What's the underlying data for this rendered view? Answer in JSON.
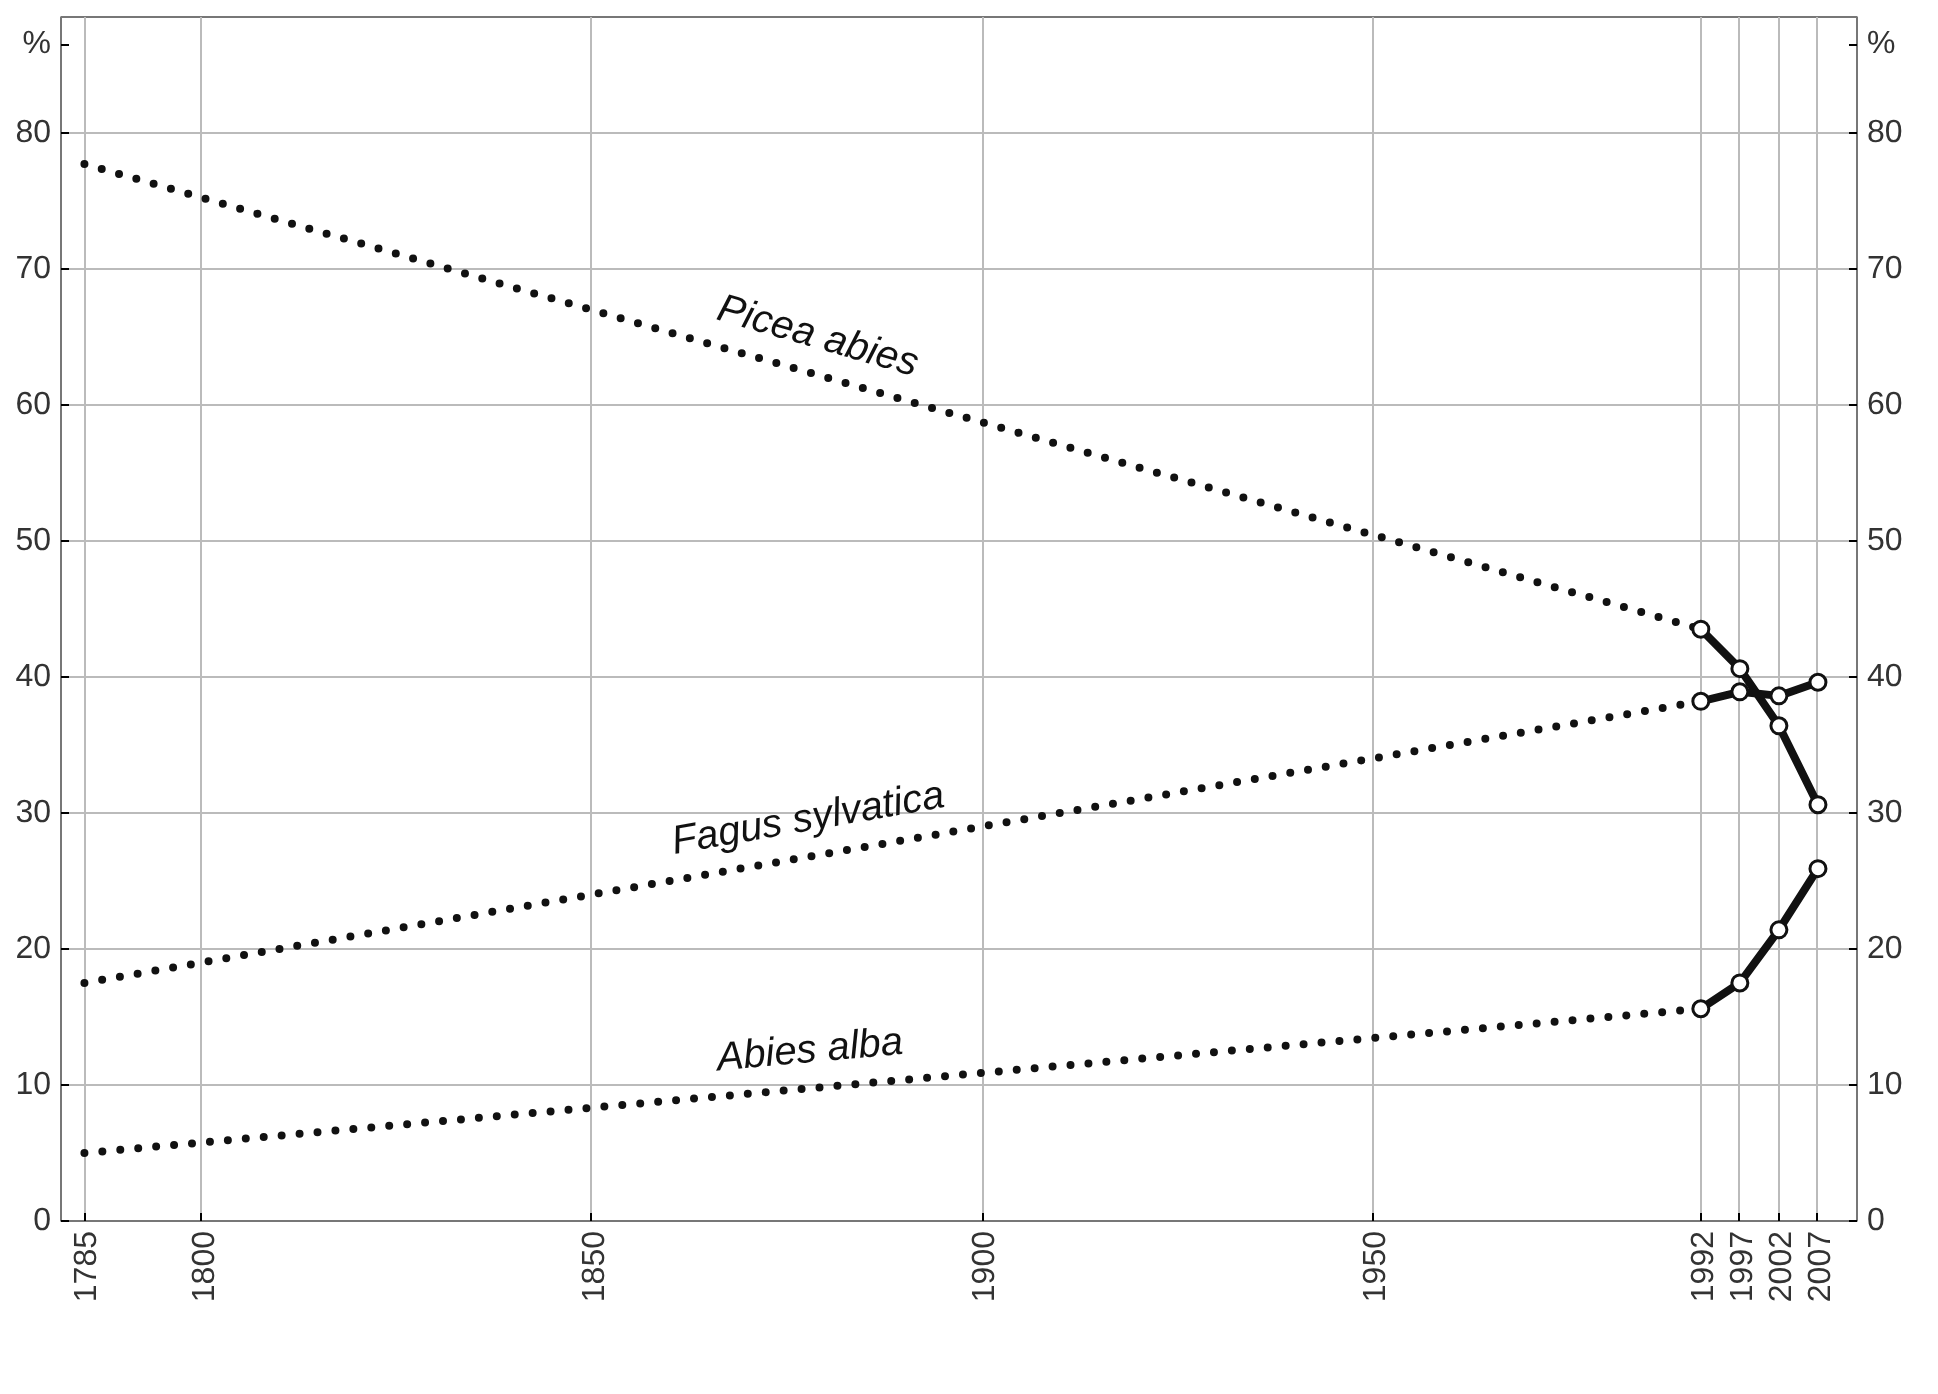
{
  "chart_data": {
    "type": "line",
    "xlim": [
      1782,
      2012
    ],
    "ylim": [
      0,
      88.5
    ],
    "y2lim": [
      0,
      88.5
    ],
    "xticks": [
      1785,
      1800,
      1850,
      1900,
      1950,
      1992,
      1997,
      2002,
      2007
    ],
    "yticks": [
      0,
      10,
      20,
      30,
      40,
      50,
      60,
      70,
      80,
      {
        "value": 86.5,
        "label": "%"
      }
    ],
    "y2ticks": [
      0,
      10,
      20,
      30,
      40,
      50,
      60,
      70,
      80,
      {
        "value": 86.5,
        "label": "%"
      }
    ],
    "grid": true,
    "series": [
      {
        "name": "Picea abies",
        "color": "#111111",
        "line_style": "dotted",
        "x": [
          1785,
          1992
        ],
        "values": [
          77.7,
          43.5
        ]
      },
      {
        "color": "#111111",
        "line_style": "solid",
        "marker": "circle",
        "x": [
          1992,
          1997,
          2002,
          2007
        ],
        "values": [
          43.5,
          40.6,
          36.4,
          30.6
        ]
      },
      {
        "name": "Fagus sylvatica",
        "color": "#111111",
        "line_style": "dotted",
        "x": [
          1785,
          1992
        ],
        "values": [
          17.5,
          38.2
        ]
      },
      {
        "color": "#111111",
        "line_style": "solid",
        "marker": "circle",
        "x": [
          1992,
          1997,
          2002,
          2007
        ],
        "values": [
          38.2,
          38.9,
          38.6,
          39.6
        ]
      },
      {
        "name": "Abies alba",
        "color": "#111111",
        "line_style": "dotted",
        "x": [
          1785,
          1992
        ],
        "values": [
          5.0,
          15.6
        ]
      },
      {
        "color": "#111111",
        "line_style": "solid",
        "marker": "circle",
        "x": [
          1992,
          1997,
          2002,
          2007
        ],
        "values": [
          15.6,
          17.5,
          21.4,
          25.9
        ]
      }
    ]
  }
}
